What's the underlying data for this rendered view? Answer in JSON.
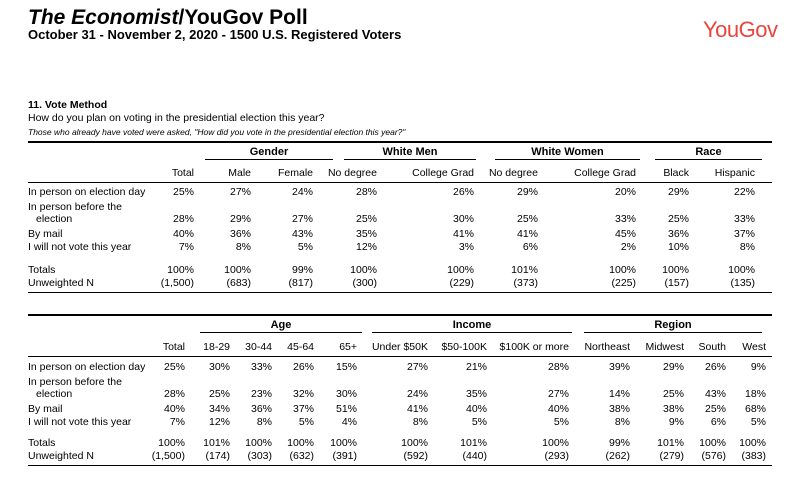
{
  "header": {
    "title_italic": "The Economist",
    "title_rest": "/YouGov Poll",
    "subtitle": "October 31 - November 2, 2020 - 1500 U.S. Registered Voters",
    "logo": "YouGov",
    "brand_color": "#e8453c"
  },
  "question": {
    "number_title": "11.  Vote Method",
    "text": "How do you plan on voting in the presidential election this year?",
    "note": "Those who already have voted were asked, \"How did you vote in the presidential election this year?\""
  },
  "table1": {
    "groups": [
      "Gender",
      "White Men",
      "White Women",
      "Race"
    ],
    "columns": [
      "Total",
      "Male",
      "Female",
      "No degree",
      "College Grad",
      "No degree",
      "College Grad",
      "Black",
      "Hispanic"
    ],
    "rows": [
      {
        "label": [
          "In person on election day"
        ],
        "values": [
          "25%",
          "27%",
          "24%",
          "28%",
          "26%",
          "29%",
          "20%",
          "29%",
          "22%"
        ]
      },
      {
        "label": [
          "In person before the",
          "election"
        ],
        "values": [
          "28%",
          "29%",
          "27%",
          "25%",
          "30%",
          "25%",
          "33%",
          "25%",
          "33%"
        ]
      },
      {
        "label": [
          "By mail"
        ],
        "values": [
          "40%",
          "36%",
          "43%",
          "35%",
          "41%",
          "41%",
          "45%",
          "36%",
          "37%"
        ]
      },
      {
        "label": [
          "I will not vote this year"
        ],
        "values": [
          "7%",
          "8%",
          "5%",
          "12%",
          "3%",
          "6%",
          "2%",
          "10%",
          "8%"
        ]
      }
    ],
    "totals": {
      "label": "Totals",
      "values": [
        "100%",
        "100%",
        "99%",
        "100%",
        "100%",
        "101%",
        "100%",
        "100%",
        "100%"
      ]
    },
    "unweighted": {
      "label": "Unweighted N",
      "values": [
        "(1,500)",
        "(683)",
        "(817)",
        "(300)",
        "(229)",
        "(373)",
        "(225)",
        "(157)",
        "(135)"
      ]
    }
  },
  "table2": {
    "groups": [
      "Age",
      "Income",
      "Region"
    ],
    "columns": [
      "Total",
      "18-29",
      "30-44",
      "45-64",
      "65+",
      "Under $50K",
      "$50-100K",
      "$100K or more",
      "Northeast",
      "Midwest",
      "South",
      "West"
    ],
    "rows": [
      {
        "label": [
          "In person on election day"
        ],
        "values": [
          "25%",
          "30%",
          "33%",
          "26%",
          "15%",
          "27%",
          "21%",
          "28%",
          "39%",
          "29%",
          "26%",
          "9%"
        ]
      },
      {
        "label": [
          "In person before the",
          "election"
        ],
        "values": [
          "28%",
          "25%",
          "23%",
          "32%",
          "30%",
          "24%",
          "35%",
          "27%",
          "14%",
          "25%",
          "43%",
          "18%"
        ]
      },
      {
        "label": [
          "By mail"
        ],
        "values": [
          "40%",
          "34%",
          "36%",
          "37%",
          "51%",
          "41%",
          "40%",
          "40%",
          "38%",
          "38%",
          "25%",
          "68%"
        ]
      },
      {
        "label": [
          "I will not vote this year"
        ],
        "values": [
          "7%",
          "12%",
          "8%",
          "5%",
          "4%",
          "8%",
          "5%",
          "5%",
          "8%",
          "9%",
          "6%",
          "5%"
        ]
      }
    ],
    "totals": {
      "label": "Totals",
      "values": [
        "100%",
        "101%",
        "100%",
        "100%",
        "100%",
        "100%",
        "101%",
        "100%",
        "99%",
        "101%",
        "100%",
        "100%"
      ]
    },
    "unweighted": {
      "label": "Unweighted N",
      "values": [
        "(1,500)",
        "(174)",
        "(303)",
        "(632)",
        "(391)",
        "(592)",
        "(440)",
        "(293)",
        "(262)",
        "(279)",
        "(576)",
        "(383)"
      ]
    }
  }
}
